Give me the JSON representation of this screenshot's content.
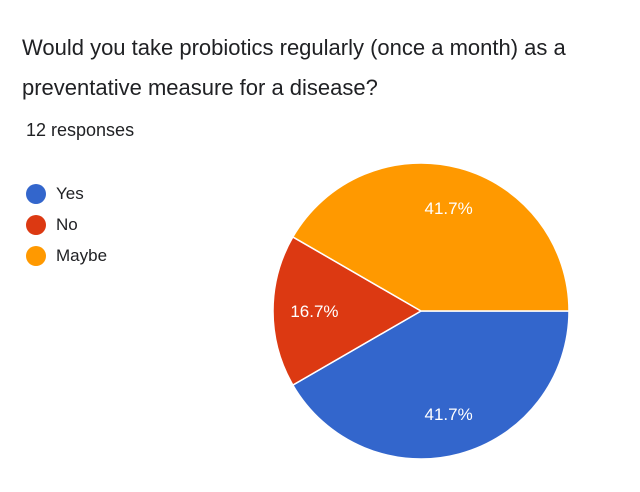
{
  "question": {
    "title": "Would you take probiotics regularly (once a month) as a preventative measure for a disease?",
    "responses": "12 responses"
  },
  "colors": {
    "yes": "#3366cc",
    "no": "#dc3912",
    "maybe": "#ff9900"
  },
  "chart_data": {
    "type": "pie",
    "categories": [
      "Yes",
      "No",
      "Maybe"
    ],
    "values": [
      41.7,
      16.7,
      41.7
    ],
    "labels": [
      "41.7%",
      "16.7%",
      "41.7%"
    ],
    "colors": [
      "#3366cc",
      "#dc3912",
      "#ff9900"
    ],
    "legend_position": "left",
    "start": "right, clockwise"
  }
}
